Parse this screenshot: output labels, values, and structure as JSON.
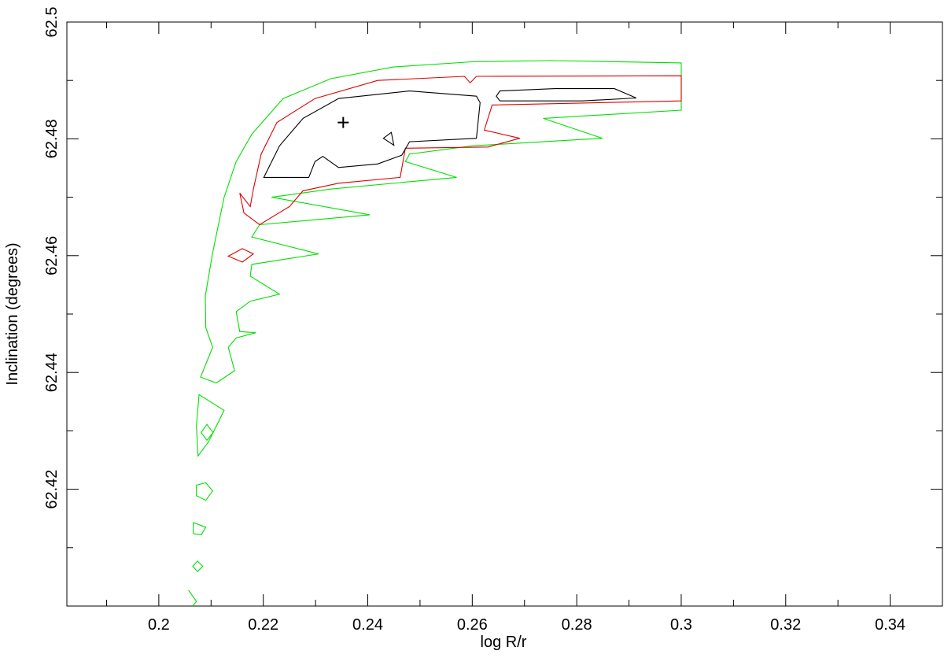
{
  "chart_data": {
    "type": "line",
    "xlabel": "log R/r",
    "ylabel": "Inclination (degrees)",
    "xlim": [
      0.1824,
      0.35
    ],
    "ylim": [
      62.4,
      62.5
    ],
    "xticks": [
      0.2,
      0.22,
      0.24,
      0.26,
      0.28,
      0.3,
      0.32,
      0.34
    ],
    "yticks": [
      62.42,
      62.44,
      62.46,
      62.48,
      62.5
    ],
    "xminorticks": [
      0.19,
      0.21,
      0.23,
      0.25,
      0.27,
      0.29,
      0.31,
      0.33
    ],
    "yminorticks": [
      62.41,
      62.43,
      62.45,
      62.47,
      62.49
    ],
    "series": [
      {
        "color": "#00e000",
        "closed": true,
        "x": [
          0.2089,
          0.2103,
          0.2125,
          0.2148,
          0.2178,
          0.2238,
          0.2329,
          0.2449,
          0.26,
          0.2751,
          0.3,
          0.3,
          0.2736,
          0.2849,
          0.26,
          0.248,
          0.2472,
          0.257,
          0.2329,
          0.2216,
          0.2404,
          0.2193,
          0.2178,
          0.2306,
          0.2178,
          0.2175,
          0.2231,
          0.2175,
          0.2148,
          0.2155,
          0.2186,
          0.2148,
          0.2133,
          0.2145,
          0.211,
          0.208,
          0.2103,
          0.209
        ],
        "values": [
          62.4531,
          62.4605,
          62.47,
          62.4761,
          62.4808,
          62.4869,
          62.4903,
          62.4923,
          62.4932,
          62.4934,
          62.493,
          62.4849,
          62.4835,
          62.4801,
          62.4788,
          62.4774,
          62.4761,
          62.4734,
          62.4714,
          62.47,
          62.467,
          62.4653,
          62.4632,
          62.4603,
          62.4585,
          62.4565,
          62.4534,
          62.4522,
          62.4504,
          62.447,
          62.4468,
          62.4459,
          62.4443,
          62.4403,
          62.4382,
          62.4392,
          62.4443,
          62.4477
        ]
      },
      {
        "color": "#00e000",
        "closed": true,
        "x": [
          0.2077,
          0.2125,
          0.2095,
          0.2075,
          0.2072
        ],
        "values": [
          62.4362,
          62.4335,
          62.4281,
          62.4257,
          62.4308
        ]
      },
      {
        "color": "#00e000",
        "closed": true,
        "x": [
          0.2081,
          0.2092,
          0.2104,
          0.2092
        ],
        "values": [
          62.4297,
          62.4311,
          62.4297,
          62.4284
        ]
      },
      {
        "color": "#00e000",
        "closed": true,
        "x": [
          0.2072,
          0.209,
          0.2103,
          0.209,
          0.2072
        ],
        "values": [
          62.4207,
          62.4211,
          62.4197,
          62.4181,
          62.4189
        ]
      },
      {
        "color": "#00e000",
        "closed": true,
        "x": [
          0.2066,
          0.209,
          0.2081,
          0.2066
        ],
        "values": [
          62.4143,
          62.4135,
          62.4122,
          62.4124
        ]
      },
      {
        "color": "#00e000",
        "closed": true,
        "x": [
          0.2065,
          0.2074,
          0.2084,
          0.2074
        ],
        "values": [
          62.4068,
          62.4077,
          62.4068,
          62.4059
        ]
      },
      {
        "color": "#00e000",
        "closed": false,
        "x": [
          0.2057,
          0.2072,
          0.2065
        ],
        "values": [
          62.4027,
          62.4008,
          62.4
        ]
      },
      {
        "color": "#e00000",
        "closed": true,
        "x": [
          0.2175,
          0.2181,
          0.2196,
          0.2226,
          0.2299,
          0.2419,
          0.2585,
          0.2596,
          0.2608,
          0.3,
          0.3,
          0.2638,
          0.2623,
          0.2691,
          0.263,
          0.2472,
          0.2462,
          0.2344,
          0.2276,
          0.225,
          0.2193,
          0.2163,
          0.2155
        ],
        "values": [
          62.4684,
          62.4714,
          62.4774,
          62.4828,
          62.4869,
          62.49,
          62.4907,
          62.4896,
          62.4907,
          62.4908,
          62.4865,
          62.4858,
          62.4815,
          62.4801,
          62.4786,
          62.4784,
          62.4734,
          62.4724,
          62.4711,
          62.4684,
          62.4653,
          62.4673,
          62.4707
        ]
      },
      {
        "color": "#e00000",
        "closed": true,
        "x": [
          0.2133,
          0.216,
          0.2181,
          0.216
        ],
        "values": [
          62.4599,
          62.4612,
          62.4603,
          62.4589
        ]
      },
      {
        "color": "#000000",
        "closed": true,
        "x": [
          0.2201,
          0.2231,
          0.2276,
          0.2344,
          0.248,
          0.2608,
          0.2615,
          0.2608,
          0.248,
          0.2465,
          0.2419,
          0.2344,
          0.2314,
          0.2299,
          0.2287
        ],
        "values": [
          62.4734,
          62.4788,
          62.4835,
          62.4869,
          62.4882,
          62.4873,
          62.4862,
          62.4801,
          62.4795,
          62.4772,
          62.4757,
          62.4751,
          62.477,
          62.4761,
          62.4734
        ]
      },
      {
        "color": "#000000",
        "closed": true,
        "x": [
          0.243,
          0.2445,
          0.245
        ],
        "values": [
          62.4801,
          62.4811,
          62.4789
        ]
      },
      {
        "color": "#000000",
        "closed": true,
        "x": [
          0.2646,
          0.2653,
          0.2759,
          0.2872,
          0.2914,
          0.2811,
          0.2653
        ],
        "values": [
          62.4873,
          62.4882,
          62.4886,
          62.4886,
          62.487,
          62.4865,
          62.4865
        ]
      }
    ],
    "best_fit": {
      "x": 0.2353,
      "y": 62.4828,
      "marker": "+",
      "color": "#000000"
    }
  }
}
